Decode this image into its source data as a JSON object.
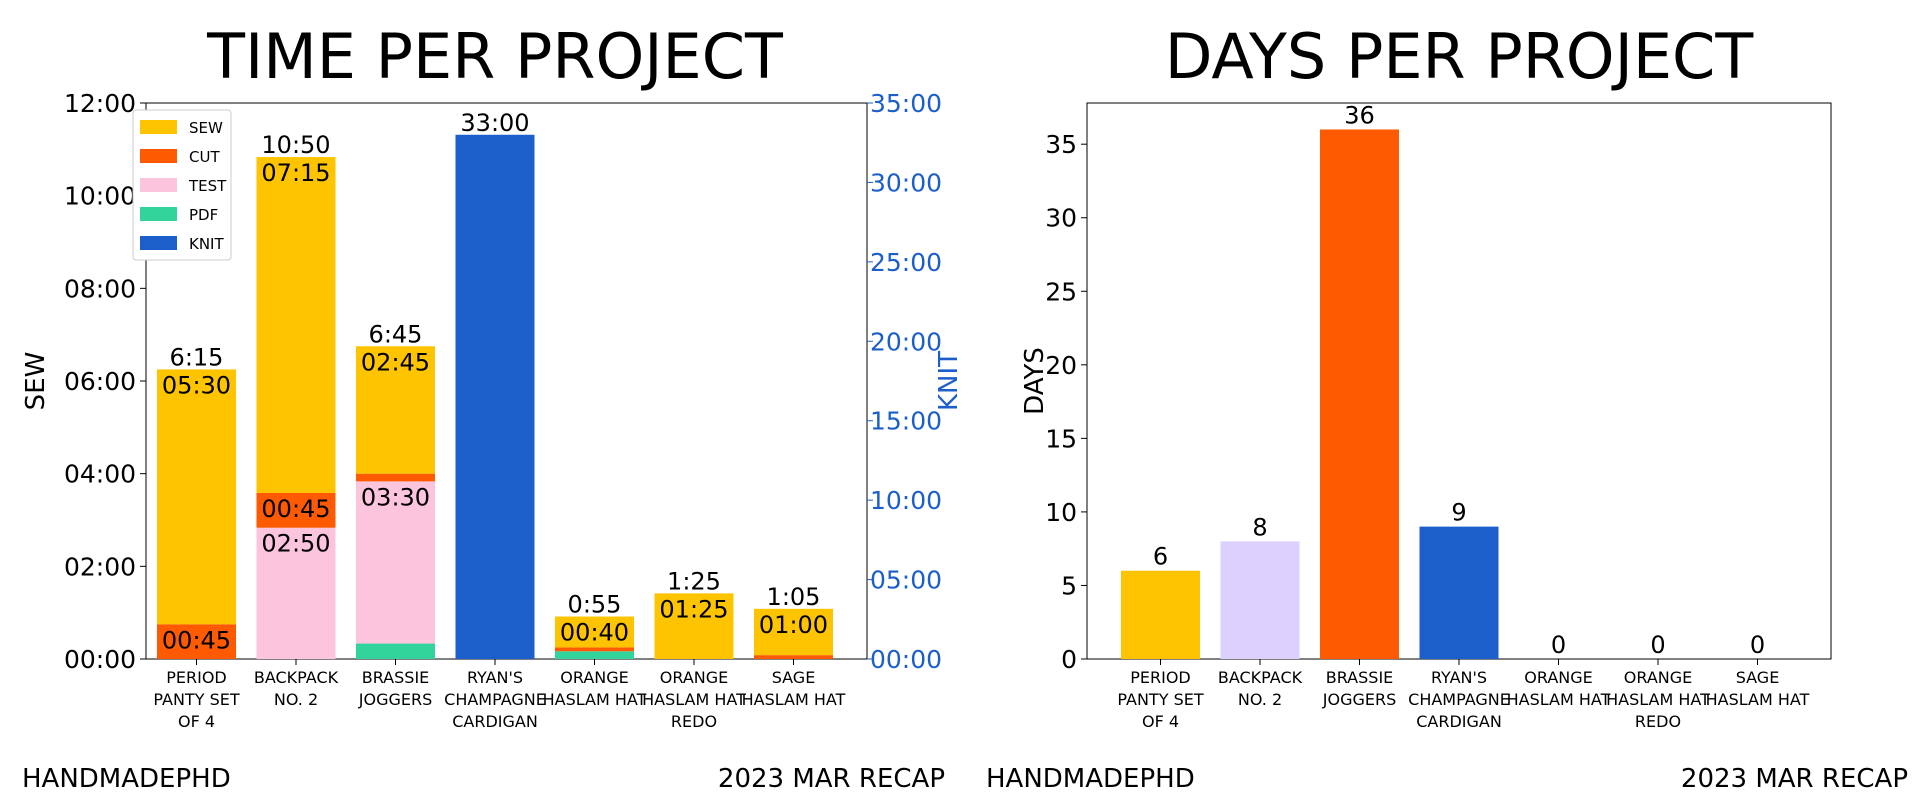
{
  "chart_data": [
    {
      "type": "bar",
      "stacked": true,
      "title": "TIME PER PROJECT",
      "ylabel": "SEW",
      "ylabel_right": "KNIT",
      "ylim": [
        0,
        720
      ],
      "ylim_right": [
        0,
        2100
      ],
      "y_unit": "minutes",
      "yticks": [
        "00:00",
        "02:00",
        "04:00",
        "06:00",
        "08:00",
        "10:00",
        "12:00"
      ],
      "yticks_right": [
        "00:00",
        "05:00",
        "10:00",
        "15:00",
        "20:00",
        "25:00",
        "30:00",
        "35:00"
      ],
      "categories": [
        [
          "PERIOD",
          "PANTY SET",
          "OF 4"
        ],
        [
          "BACKPACK",
          "NO. 2"
        ],
        [
          "BRASSIE",
          "JOGGERS"
        ],
        [
          "RYAN'S",
          "CHAMPAGNE",
          "CARDIGAN"
        ],
        [
          "ORANGE",
          "HASLAM HAT"
        ],
        [
          "ORANGE",
          "HASLAM HAT",
          "REDO"
        ],
        [
          "SAGE",
          "HASLAM HAT"
        ]
      ],
      "legend": [
        "SEW",
        "CUT",
        "TEST",
        "PDF",
        "KNIT"
      ],
      "legend_position": "top-left",
      "series": [
        {
          "name": "PDF",
          "color": "#33d39c",
          "axis": "left",
          "values": [
            0,
            0,
            20,
            0,
            10,
            0,
            0
          ]
        },
        {
          "name": "TEST",
          "color": "#fdc4de",
          "axis": "left",
          "values": [
            0,
            170,
            210,
            0,
            0,
            0,
            0
          ]
        },
        {
          "name": "CUT",
          "color": "#fe5a02",
          "axis": "left",
          "values": [
            45,
            45,
            10,
            0,
            5,
            0,
            5
          ]
        },
        {
          "name": "SEW",
          "color": "#fec400",
          "axis": "left",
          "values": [
            330,
            435,
            165,
            0,
            40,
            85,
            60
          ]
        },
        {
          "name": "KNIT",
          "color": "#1c5fca",
          "axis": "right",
          "values": [
            0,
            0,
            0,
            1980,
            0,
            0,
            0
          ]
        }
      ],
      "totals": [
        "6:15",
        "10:50",
        "6:45",
        "33:00",
        "0:55",
        "1:25",
        "1:05"
      ],
      "segment_labels": [
        {
          "bar": 0,
          "text": "05:30",
          "anchor": 375
        },
        {
          "bar": 0,
          "text": "00:45",
          "anchor": 45
        },
        {
          "bar": 1,
          "text": "07:15",
          "anchor": 650
        },
        {
          "bar": 1,
          "text": "00:45",
          "anchor": 215
        },
        {
          "bar": 1,
          "text": "02:50",
          "anchor": 170
        },
        {
          "bar": 2,
          "text": "02:45",
          "anchor": 405
        },
        {
          "bar": 2,
          "text": "03:30",
          "anchor": 230
        },
        {
          "bar": 4,
          "text": "00:40",
          "anchor": 55
        },
        {
          "bar": 5,
          "text": "01:25",
          "anchor": 85
        },
        {
          "bar": 6,
          "text": "01:00",
          "anchor": 65
        }
      ]
    },
    {
      "type": "bar",
      "title": "DAYS PER PROJECT",
      "ylabel": "DAYS",
      "ylim": [
        0,
        37.8
      ],
      "yticks": [
        "0",
        "5",
        "10",
        "15",
        "20",
        "25",
        "30",
        "35"
      ],
      "categories": [
        [
          "PERIOD",
          "PANTY SET",
          "OF 4"
        ],
        [
          "BACKPACK",
          "NO. 2"
        ],
        [
          "BRASSIE",
          "JOGGERS"
        ],
        [
          "RYAN'S",
          "CHAMPAGNE",
          "CARDIGAN"
        ],
        [
          "ORANGE",
          "HASLAM HAT"
        ],
        [
          "ORANGE",
          "HASLAM HAT",
          "REDO"
        ],
        [
          "SAGE",
          "HASLAM HAT"
        ]
      ],
      "values": [
        6,
        8,
        36,
        9,
        0,
        0,
        0
      ],
      "value_labels": [
        "6",
        "8",
        "36",
        "9",
        "0",
        "0",
        "0"
      ],
      "colors": [
        "#fec400",
        "#dcd0ff",
        "#fe5a02",
        "#1c5fca",
        "#ffffff",
        "#ffffff",
        "#ffffff"
      ]
    }
  ],
  "footer": {
    "left_1": "HANDMADEPHD",
    "right_1": "2023 MAR RECAP",
    "left_2": "HANDMADEPHD",
    "right_2": "2023 MAR RECAP"
  }
}
